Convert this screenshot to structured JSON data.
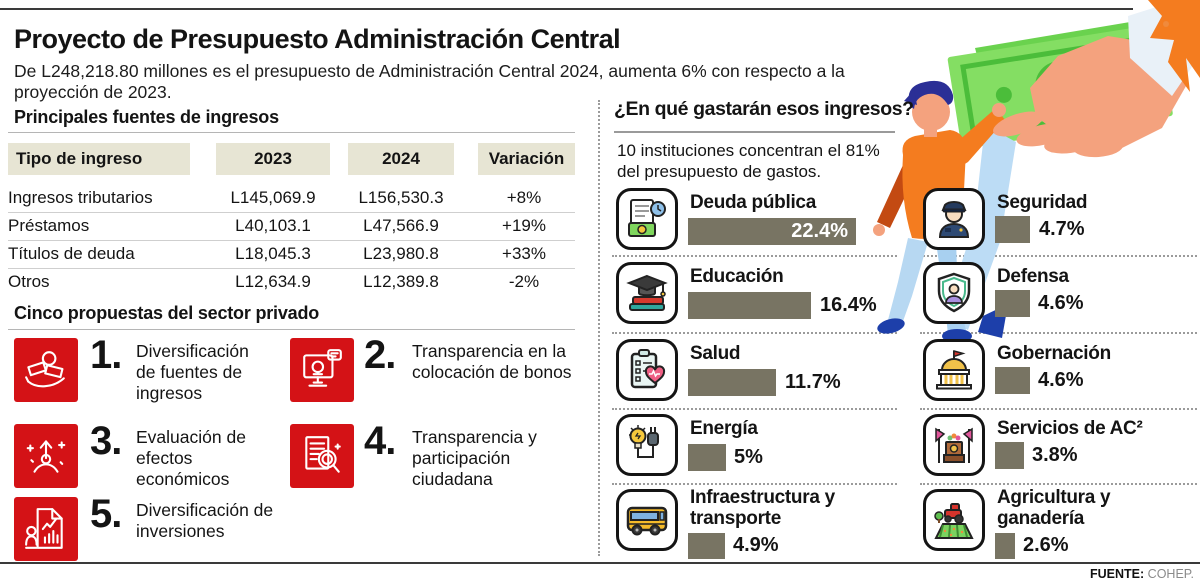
{
  "header": {
    "title": "Proyecto de Presupuesto Administración Central",
    "subtitle": "De L248,218.80 millones es el presupuesto de Administración Central 2024, aumenta 6% con respecto a la proyección de 2023."
  },
  "income": {
    "section_title": "Principales fuentes de ingresos",
    "columns": [
      "Tipo de ingreso",
      "2023",
      "2024",
      "Variación"
    ],
    "rows": [
      {
        "tipo": "Ingresos tributarios",
        "y2023": "L145,069.9",
        "y2024": "L156,530.3",
        "var": "+8%"
      },
      {
        "tipo": "Préstamos",
        "y2023": "L40,103.1",
        "y2024": "L47,566.9",
        "var": "+19%"
      },
      {
        "tipo": "Títulos de deuda",
        "y2023": "L18,045.3",
        "y2024": "L23,980.8",
        "var": "+33%"
      },
      {
        "tipo": "Otros",
        "y2023": "L12,634.9",
        "y2024": "L12,389.8",
        "var": "-2%"
      }
    ]
  },
  "proposals": {
    "section_title": "Cinco propuestas del sector privado",
    "items": [
      {
        "number": "1.",
        "text": "Diversificación de fuentes de ingresos",
        "icon": "hand-receiving-money-icon"
      },
      {
        "number": "2.",
        "text": "Transparencia en la colocación de bonos",
        "icon": "monitor-bond-icon"
      },
      {
        "number": "3.",
        "text": "Evaluación de efectos económicos",
        "icon": "economic-growth-icon"
      },
      {
        "number": "4.",
        "text": "Transparencia y participación ciudadana",
        "icon": "document-magnifier-icon"
      },
      {
        "number": "5.",
        "text": "Diversificación de inversiones",
        "icon": "investment-report-icon"
      }
    ]
  },
  "spending": {
    "section_title": "¿En qué gastarán esos ingresos?",
    "subtitle": "10 instituciones concentran el 81% del presupuesto de gastos.",
    "items": [
      {
        "label": "Deuda pública",
        "value": 22.4,
        "pct": "22.4%",
        "icon": "public-debt-icon"
      },
      {
        "label": "Educación",
        "value": 16.4,
        "pct": "16.4%",
        "icon": "education-icon"
      },
      {
        "label": "Salud",
        "value": 11.7,
        "pct": "11.7%",
        "icon": "health-icon"
      },
      {
        "label": "Energía",
        "value": 5,
        "pct": "5%",
        "icon": "energy-icon"
      },
      {
        "label": "Infraestructura y transporte",
        "value": 4.9,
        "pct": "4.9%",
        "icon": "transport-icon"
      },
      {
        "label": "Seguridad",
        "value": 4.7,
        "pct": "4.7%",
        "icon": "security-icon"
      },
      {
        "label": "Defensa",
        "value": 4.6,
        "pct": "4.6%",
        "icon": "defense-icon"
      },
      {
        "label": "Gobernación",
        "value": 4.6,
        "pct": "4.6%",
        "icon": "governance-icon"
      },
      {
        "label": "Servicios de AC²",
        "value": 3.8,
        "pct": "3.8%",
        "icon": "ac-services-icon"
      },
      {
        "label": "Agricultura y ganadería",
        "value": 2.6,
        "pct": "2.6%",
        "icon": "agriculture-icon"
      }
    ]
  },
  "chart_data": [
    {
      "type": "bar",
      "orientation": "horizontal",
      "title": "¿En qué gastarán esos ingresos?",
      "annotation": "10 instituciones concentran el 81% del presupuesto de gastos.",
      "categories": [
        "Deuda pública",
        "Educación",
        "Salud",
        "Energía",
        "Infraestructura y transporte",
        "Seguridad",
        "Defensa",
        "Gobernación",
        "Servicios de AC²",
        "Agricultura y ganadería"
      ],
      "values": [
        22.4,
        16.4,
        11.7,
        5,
        4.9,
        4.7,
        4.6,
        4.6,
        3.8,
        2.6
      ],
      "unit": "%",
      "bar_color": "#787463"
    },
    {
      "type": "table",
      "title": "Principales fuentes de ingresos",
      "columns": [
        "Tipo de ingreso",
        "2023",
        "2024",
        "Variación"
      ],
      "rows": [
        [
          "Ingresos tributarios",
          "L145,069.9",
          "L156,530.3",
          "+8%"
        ],
        [
          "Préstamos",
          "L40,103.1",
          "L47,566.9",
          "+19%"
        ],
        [
          "Títulos de deuda",
          "L18,045.3",
          "L23,980.8",
          "+33%"
        ],
        [
          "Otros",
          "L12,634.9",
          "L12,389.8",
          "-2%"
        ]
      ]
    }
  ],
  "footer": {
    "source_label": "FUENTE:",
    "source_value": "COHEP."
  },
  "colors": {
    "accent_red": "#d41216",
    "bar_olive": "#787463",
    "header_beige": "#e7e5d4"
  }
}
